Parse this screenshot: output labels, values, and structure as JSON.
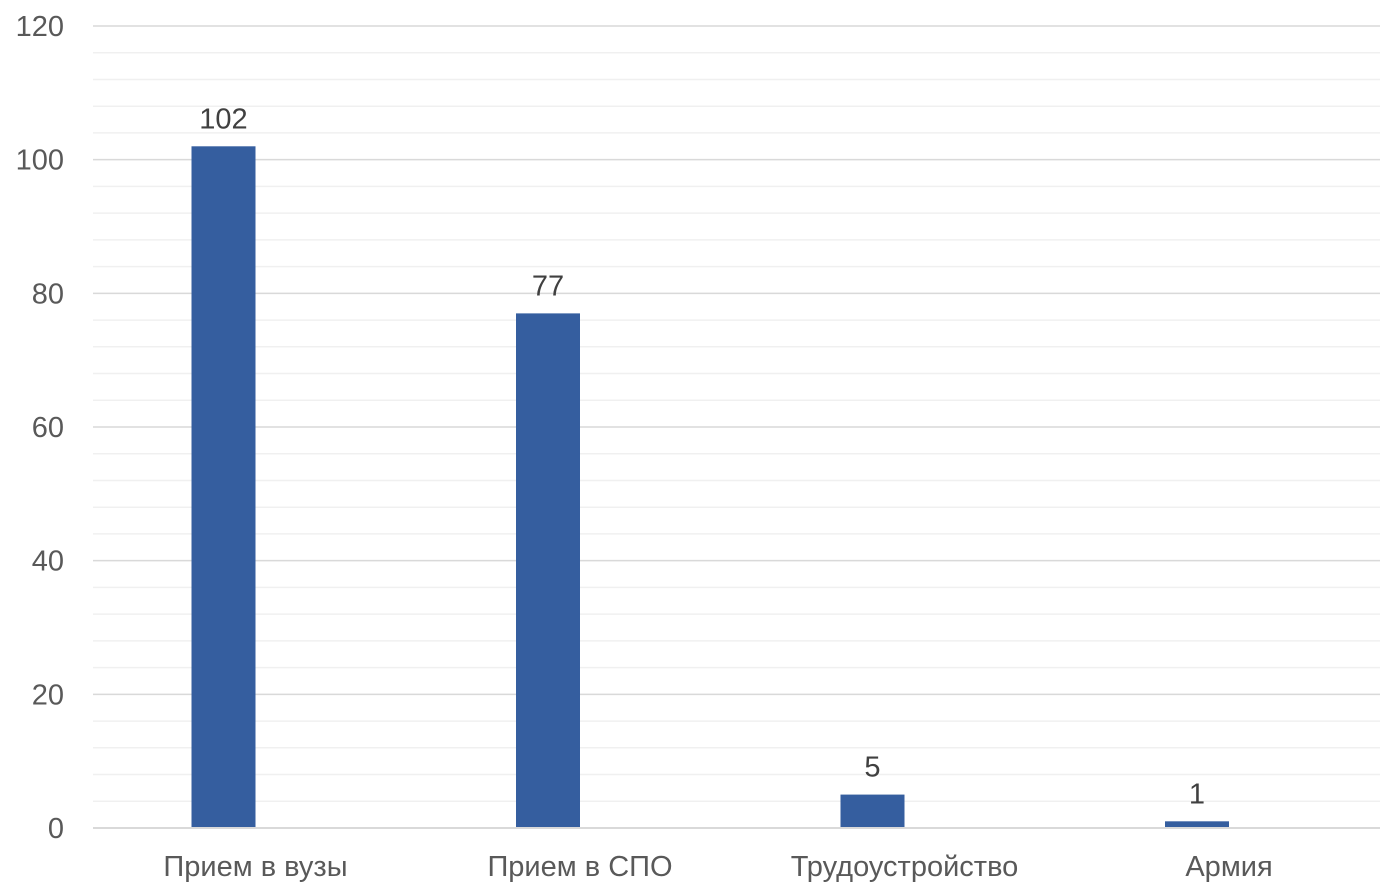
{
  "chart_data": {
    "type": "bar",
    "title": "",
    "xlabel": "",
    "ylabel": "",
    "categories": [
      "Прием в вузы",
      "Прием в СПО",
      "Трудоустройство",
      "Армия"
    ],
    "values": [
      102,
      77,
      5,
      1
    ],
    "data_labels": [
      "102",
      "77",
      "5",
      "1"
    ],
    "ylim": [
      0,
      120
    ],
    "y_ticks": [
      0,
      20,
      40,
      60,
      80,
      100,
      120
    ],
    "y_tick_labels": [
      "0",
      "20",
      "40",
      "60",
      "80",
      "100",
      "120"
    ],
    "grid": true,
    "minor_grid": true,
    "legend": "none",
    "colors": {
      "bar": "#355E9F",
      "major_grid": "#D9D9D9",
      "minor_grid": "#F0F0F0",
      "axis": "#D9D9D9",
      "tick_text": "#595959",
      "label_text": "#404040"
    }
  }
}
